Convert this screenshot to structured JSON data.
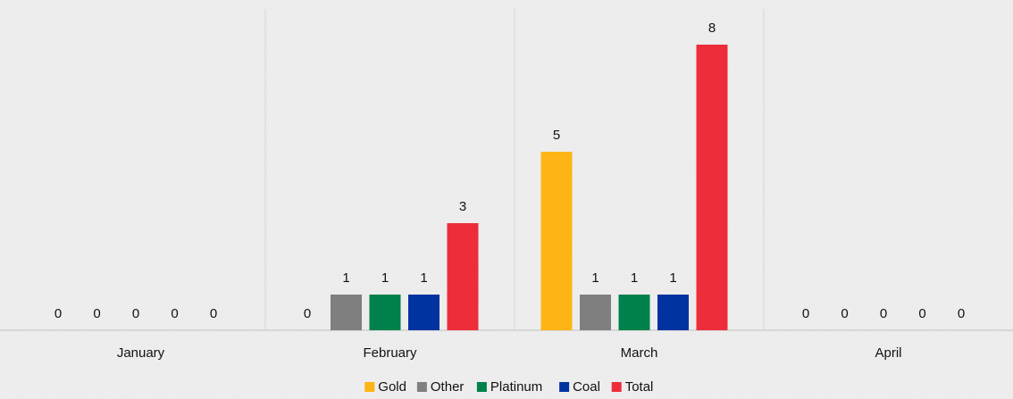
{
  "chart_data": {
    "type": "bar",
    "categories": [
      "January",
      "February",
      "March",
      "April"
    ],
    "series": [
      {
        "name": "Gold",
        "color": "#FDB515",
        "values": [
          0,
          0,
          5,
          0
        ]
      },
      {
        "name": "Other",
        "color": "#7F7F7F",
        "values": [
          0,
          1,
          1,
          0
        ]
      },
      {
        "name": "Platinum",
        "color": "#00804A",
        "values": [
          0,
          1,
          1,
          0
        ]
      },
      {
        "name": "Coal",
        "color": "#0033A0",
        "values": [
          0,
          1,
          1,
          0
        ]
      },
      {
        "name": "Total",
        "color": "#EE2D3A",
        "values": [
          0,
          3,
          8,
          0
        ]
      }
    ],
    "ylim": [
      0,
      8
    ],
    "grid": false,
    "category_dividers": true,
    "legend": "bottom",
    "data_labels": true
  }
}
